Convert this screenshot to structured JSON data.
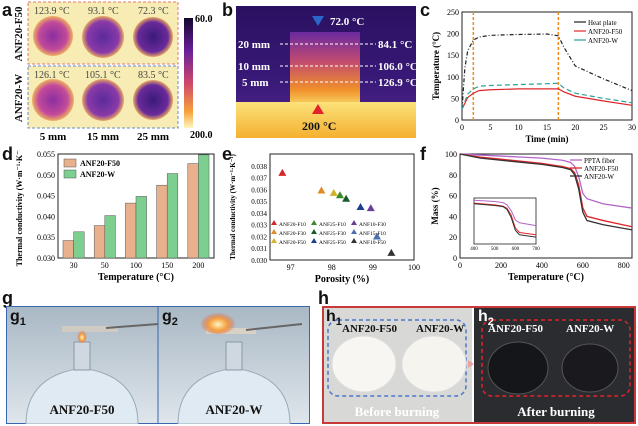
{
  "labels": {
    "a": "a",
    "b": "b",
    "c": "c",
    "d": "d",
    "e": "e",
    "f": "f",
    "g": "g",
    "g1": "1",
    "g2": "2",
    "h": "h",
    "h1": "1",
    "h2": "2"
  },
  "panel_a": {
    "row1_label": "ANF20-F50",
    "row2_label": "ANF20-W",
    "row1_temps": [
      "123.9 °C",
      "93.1 °C",
      "72.3 °C"
    ],
    "row2_temps": [
      "126.1 °C",
      "105.1 °C",
      "83.5 °C"
    ],
    "col_labels": [
      "5 mm",
      "15 mm",
      "25 mm"
    ],
    "scale_max": "60.0",
    "scale_min": "200.0"
  },
  "panel_b": {
    "top_temp": "72.0 °C",
    "bottom_temp": "200 °C",
    "levels": [
      {
        "height": "20 mm",
        "temp": "84.1 °C"
      },
      {
        "height": "10 mm",
        "temp": "106.0 °C"
      },
      {
        "height": "5 mm",
        "temp": "126.9 °C"
      }
    ]
  },
  "panel_g": {
    "left_caption": "ANF20-F50",
    "right_caption": "ANF20-W"
  },
  "panel_h": {
    "h1_left": "ANF20-F50",
    "h1_right": "ANF20-W",
    "h2_left": "ANF20-F50",
    "h2_right": "ANF20-W",
    "before": "Before burning",
    "after": "After burning"
  },
  "chart_data": [
    {
      "type": "line",
      "panel": "c",
      "xlabel": "Time (min)",
      "ylabel": "Temperature (°C)",
      "xlim": [
        0,
        30
      ],
      "ylim": [
        0,
        250
      ],
      "xticks": [
        0,
        5,
        10,
        15,
        20,
        25,
        30
      ],
      "yticks": [
        0,
        50,
        100,
        150,
        200,
        250
      ],
      "series": [
        {
          "name": "Heat plate",
          "color": "#222222",
          "x": [
            0,
            0.5,
            1,
            2,
            3,
            5,
            10,
            15,
            17,
            18,
            20,
            25,
            30
          ],
          "y": [
            25,
            120,
            160,
            185,
            192,
            196,
            198,
            199,
            195,
            168,
            125,
            95,
            68
          ]
        },
        {
          "name": "ANF20-F50",
          "color": "#e0242a",
          "x": [
            0,
            1,
            2,
            3,
            5,
            10,
            15,
            17,
            18,
            20,
            25,
            30
          ],
          "y": [
            25,
            52,
            62,
            68,
            70,
            72,
            72,
            72,
            65,
            55,
            44,
            34
          ]
        },
        {
          "name": "ANF20-W",
          "color": "#2aa198",
          "x": [
            0,
            1,
            2,
            3,
            5,
            10,
            15,
            17,
            18,
            20,
            25,
            30
          ],
          "y": [
            25,
            60,
            72,
            78,
            80,
            82,
            84,
            85,
            74,
            62,
            50,
            40
          ]
        }
      ],
      "markers": [
        2,
        17
      ]
    },
    {
      "type": "bar",
      "panel": "d",
      "xlabel": "Temperature (°C)",
      "ylabel": "Thermal conductivity (W·m⁻¹·K⁻¹)",
      "categories": [
        "30",
        "50",
        "100",
        "150",
        "200"
      ],
      "ylim": [
        0.03,
        0.055
      ],
      "yticks": [
        0.03,
        0.035,
        0.04,
        0.045,
        0.05,
        0.055
      ],
      "series": [
        {
          "name": "ANF20-F50",
          "color": "#e8b08c",
          "values": [
            0.0342,
            0.0378,
            0.0432,
            0.0475,
            0.0527
          ]
        },
        {
          "name": "ANF20-W",
          "color": "#7dcf8f",
          "values": [
            0.0363,
            0.0402,
            0.0448,
            0.0503,
            0.0548
          ]
        }
      ]
    },
    {
      "type": "scatter",
      "panel": "e",
      "xlabel": "Porosity (%)",
      "ylabel": "Thermal conductivity (W·m⁻¹·K⁻¹)",
      "xlim": [
        96.5,
        100
      ],
      "ylim": [
        0.03,
        0.039
      ],
      "xticks": [
        97,
        98,
        99,
        100
      ],
      "yticks": [
        0.03,
        0.031,
        0.032,
        0.033,
        0.034,
        0.035,
        0.036,
        0.037,
        0.038
      ],
      "points": [
        {
          "name": "ANF20-F10",
          "color": "#d62728",
          "x": 96.8,
          "y": 0.0374
        },
        {
          "name": "ANF20-F30",
          "color": "#e08a2a",
          "x": 97.75,
          "y": 0.0359
        },
        {
          "name": "ANF20-F50",
          "color": "#d4b12a",
          "x": 98.05,
          "y": 0.0357
        },
        {
          "name": "ANF25-F10",
          "color": "#3a8a2a",
          "x": 98.2,
          "y": 0.0355
        },
        {
          "name": "ANF25-F30",
          "color": "#1a5a2a",
          "x": 98.35,
          "y": 0.0352
        },
        {
          "name": "ANF25-F50",
          "color": "#1f3f8f",
          "x": 98.7,
          "y": 0.0345
        },
        {
          "name": "ANF10-F30",
          "color": "#6a3d9a",
          "x": 98.95,
          "y": 0.0344
        },
        {
          "name": "ANF15-F10",
          "color": "#4a6fb0",
          "x": 99.1,
          "y": 0.032
        },
        {
          "name": "ANF10-F50",
          "color": "#333333",
          "x": 99.45,
          "y": 0.0306
        }
      ]
    },
    {
      "type": "line",
      "panel": "f",
      "xlabel": "Temperature (°C)",
      "ylabel": "Mass (%)",
      "xlim": [
        0,
        840
      ],
      "ylim": [
        0,
        100
      ],
      "xticks": [
        0,
        200,
        400,
        600,
        800
      ],
      "yticks": [
        0,
        20,
        40,
        60,
        80,
        100
      ],
      "series": [
        {
          "name": "PPTA fiber",
          "color": "#b266c8",
          "x": [
            0,
            100,
            200,
            300,
            400,
            500,
            540,
            560,
            580,
            600,
            620,
            700,
            840
          ],
          "y": [
            100,
            99,
            98,
            97,
            96,
            94,
            92,
            88,
            78,
            62,
            57,
            52,
            48
          ]
        },
        {
          "name": "ANF20-F50",
          "color": "#e0242a",
          "x": [
            0,
            100,
            200,
            300,
            400,
            500,
            540,
            560,
            580,
            600,
            620,
            700,
            840
          ],
          "y": [
            100,
            97,
            95,
            93,
            91,
            88,
            86,
            82,
            70,
            48,
            40,
            36,
            30
          ]
        },
        {
          "name": "ANF20-W",
          "color": "#333333",
          "x": [
            0,
            100,
            200,
            300,
            400,
            500,
            540,
            560,
            580,
            600,
            620,
            700,
            840
          ],
          "y": [
            100,
            96,
            94,
            92,
            90,
            87,
            85,
            80,
            66,
            44,
            36,
            32,
            27
          ]
        }
      ]
    }
  ]
}
